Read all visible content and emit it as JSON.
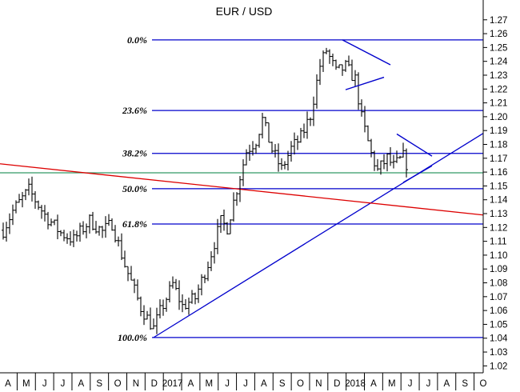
{
  "chart_data": {
    "type": "candlestick",
    "title": "EUR / USD",
    "ylim": [
      1.015,
      1.282
    ],
    "y_ticks": [
      "1.27",
      "1.26",
      "1.25",
      "1.24",
      "1.23",
      "1.22",
      "1.21",
      "1.20",
      "1.19",
      "1.18",
      "1.17",
      "1.16",
      "1.15",
      "1.14",
      "1.13",
      "1.12",
      "1.11",
      "1.10",
      "1.09",
      "1.08",
      "1.07",
      "1.06",
      "1.05",
      "1.04",
      "1.03",
      "1.02"
    ],
    "x_ticks": [
      "A",
      "M",
      "J",
      "J",
      "A",
      "S",
      "O",
      "N",
      "D",
      "2017",
      "A",
      "M",
      "J",
      "J",
      "A",
      "S",
      "O",
      "N",
      "D",
      "2018",
      "A",
      "M",
      "J",
      "J",
      "A",
      "S",
      "O"
    ],
    "colors": {
      "price": "#000000",
      "fib_lines": "#0000cc",
      "trendline_up": "#0000cc",
      "trendline_down": "#dd0000",
      "support": "#339966",
      "triangles": "#0000cc"
    },
    "fibonacci_levels": [
      {
        "label": "0.0%",
        "value": 1.2555
      },
      {
        "label": "23.6%",
        "value": 1.2045
      },
      {
        "label": "38.2%",
        "value": 1.1735
      },
      {
        "label": "50.0%",
        "value": 1.148
      },
      {
        "label": "61.8%",
        "value": 1.1225
      },
      {
        "label": "100.0%",
        "value": 1.0405
      }
    ],
    "support_level": 1.1595,
    "series_anchors": [
      {
        "week": 0,
        "close": 1.118
      },
      {
        "week": 3,
        "close": 1.132
      },
      {
        "week": 8,
        "close": 1.147
      },
      {
        "week": 13,
        "close": 1.129
      },
      {
        "week": 18,
        "close": 1.116
      },
      {
        "week": 22,
        "close": 1.111
      },
      {
        "week": 27,
        "close": 1.125
      },
      {
        "week": 31,
        "close": 1.117
      },
      {
        "week": 34,
        "close": 1.123
      },
      {
        "week": 38,
        "close": 1.093
      },
      {
        "week": 43,
        "close": 1.062
      },
      {
        "week": 47,
        "close": 1.047
      },
      {
        "week": 49,
        "close": 1.059
      },
      {
        "week": 53,
        "close": 1.079
      },
      {
        "week": 56,
        "close": 1.063
      },
      {
        "week": 60,
        "close": 1.069
      },
      {
        "week": 64,
        "close": 1.094
      },
      {
        "week": 68,
        "close": 1.124
      },
      {
        "week": 70,
        "close": 1.12
      },
      {
        "week": 73,
        "close": 1.148
      },
      {
        "week": 76,
        "close": 1.175
      },
      {
        "week": 79,
        "close": 1.183
      },
      {
        "week": 81,
        "close": 1.198
      },
      {
        "week": 84,
        "close": 1.176
      },
      {
        "week": 87,
        "close": 1.162
      },
      {
        "week": 90,
        "close": 1.177
      },
      {
        "week": 93,
        "close": 1.185
      },
      {
        "week": 96,
        "close": 1.201
      },
      {
        "week": 99,
        "close": 1.237
      },
      {
        "week": 101,
        "close": 1.248
      },
      {
        "week": 104,
        "close": 1.232
      },
      {
        "week": 107,
        "close": 1.236
      },
      {
        "week": 110,
        "close": 1.227
      },
      {
        "week": 112,
        "close": 1.199
      },
      {
        "week": 115,
        "close": 1.173
      },
      {
        "week": 117,
        "close": 1.161
      },
      {
        "week": 120,
        "close": 1.17
      },
      {
        "week": 122,
        "close": 1.164
      },
      {
        "week": 125,
        "close": 1.171
      },
      {
        "week": 127,
        "close": 1.161
      }
    ],
    "trendlines": [
      {
        "name": "up",
        "from": {
          "week": 47,
          "value": 1.0405
        },
        "to": {
          "week": 150,
          "value": 1.188
        }
      },
      {
        "name": "down",
        "from": {
          "week": -1,
          "value": 1.166
        },
        "to": {
          "week": 150,
          "value": 1.129
        }
      }
    ],
    "triangles": [
      {
        "lines": [
          {
            "from": {
              "week": 106,
              "value": 1.2555
            },
            "to": {
              "week": 121,
              "value": 1.2375
            }
          },
          {
            "from": {
              "week": 107,
              "value": 1.2195
            },
            "to": {
              "week": 119,
              "value": 1.2285
            }
          }
        ]
      },
      {
        "lines": [
          {
            "from": {
              "week": 123,
              "value": 1.1875
            },
            "to": {
              "week": 134,
              "value": 1.1715
            }
          },
          {
            "from": {
              "week": 125,
              "value": 1.1525
            },
            "to": {
              "week": 134,
              "value": 1.1645
            }
          }
        ]
      }
    ]
  }
}
